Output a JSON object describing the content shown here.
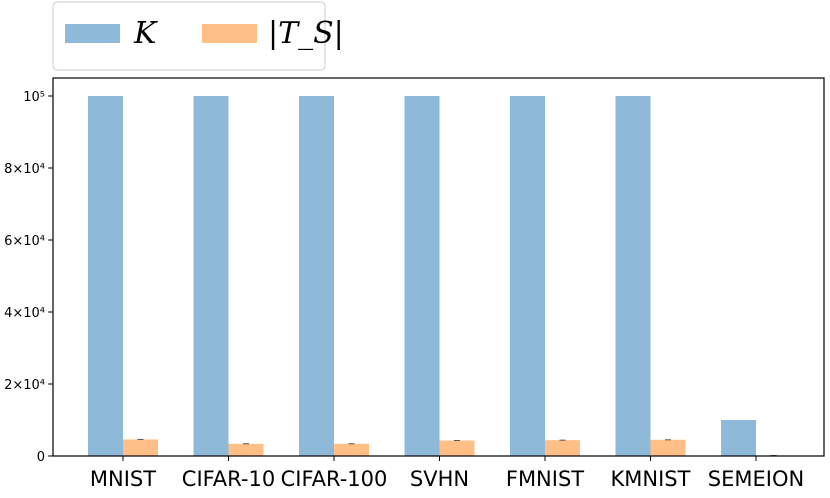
{
  "chart_data": {
    "type": "bar",
    "categories": [
      "MNIST",
      "CIFAR-10",
      "CIFAR-100",
      "SVHN",
      "FMNIST",
      "KMNIST",
      "SEMEION"
    ],
    "series": [
      {
        "name": "K",
        "color": "#8fb9d9",
        "values": [
          100000,
          100000,
          100000,
          100000,
          100000,
          100000,
          10000
        ]
      },
      {
        "name": "|T_S|",
        "color": "#ffbf86",
        "values": [
          4600,
          3400,
          3400,
          4300,
          4400,
          4500,
          150
        ]
      }
    ],
    "error_bars": true,
    "ylim": [
      0,
      100000
    ],
    "y_ticks": [
      {
        "value": 0,
        "label": "0"
      },
      {
        "value": 20000,
        "label": "2×10⁴"
      },
      {
        "value": 40000,
        "label": "4×10⁴"
      },
      {
        "value": 60000,
        "label": "6×10⁴"
      },
      {
        "value": 80000,
        "label": "8×10⁴"
      },
      {
        "value": 100000,
        "label": "10⁵"
      }
    ],
    "legend": {
      "placement": "top-left",
      "entries": [
        "K",
        "|T_S|"
      ]
    },
    "xlabel": "",
    "ylabel": "",
    "grid": false
  }
}
